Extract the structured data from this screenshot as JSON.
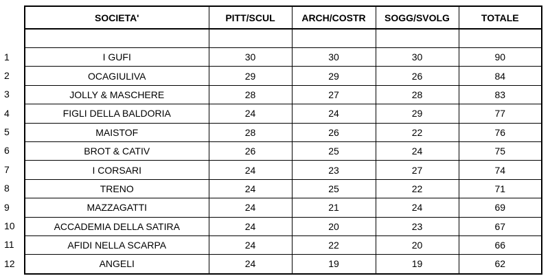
{
  "headers": {
    "societa": "SOCIETA'",
    "pitt_scul": "PITT/SCUL",
    "arch_costr": "ARCH/COSTR",
    "sogg_svolg": "SOGG/SVOLG",
    "totale": "TOTALE"
  },
  "rows": [
    {
      "rank": "1",
      "societa": "I GUFI",
      "pitt_scul": "30",
      "arch_costr": "30",
      "sogg_svolg": "30",
      "totale": "90"
    },
    {
      "rank": "2",
      "societa": "OCAGIULIVA",
      "pitt_scul": "29",
      "arch_costr": "29",
      "sogg_svolg": "26",
      "totale": "84"
    },
    {
      "rank": "3",
      "societa": "JOLLY & MASCHERE",
      "pitt_scul": "28",
      "arch_costr": "27",
      "sogg_svolg": "28",
      "totale": "83"
    },
    {
      "rank": "4",
      "societa": "FIGLI DELLA BALDORIA",
      "pitt_scul": "24",
      "arch_costr": "24",
      "sogg_svolg": "29",
      "totale": "77"
    },
    {
      "rank": "5",
      "societa": "MAISTOF",
      "pitt_scul": "28",
      "arch_costr": "26",
      "sogg_svolg": "22",
      "totale": "76"
    },
    {
      "rank": "6",
      "societa": "BROT & CATIV",
      "pitt_scul": "26",
      "arch_costr": "25",
      "sogg_svolg": "24",
      "totale": "75"
    },
    {
      "rank": "7",
      "societa": "I CORSARI",
      "pitt_scul": "24",
      "arch_costr": "23",
      "sogg_svolg": "27",
      "totale": "74"
    },
    {
      "rank": "8",
      "societa": "TRENO",
      "pitt_scul": "24",
      "arch_costr": "25",
      "sogg_svolg": "22",
      "totale": "71"
    },
    {
      "rank": "9",
      "societa": "MAZZAGATTI",
      "pitt_scul": "24",
      "arch_costr": "21",
      "sogg_svolg": "24",
      "totale": "69"
    },
    {
      "rank": "10",
      "societa": "ACCADEMIA DELLA SATIRA",
      "pitt_scul": "24",
      "arch_costr": "20",
      "sogg_svolg": "23",
      "totale": "67"
    },
    {
      "rank": "11",
      "societa": "AFIDI NELLA SCARPA",
      "pitt_scul": "24",
      "arch_costr": "22",
      "sogg_svolg": "20",
      "totale": "66"
    },
    {
      "rank": "12",
      "societa": "ANGELI",
      "pitt_scul": "24",
      "arch_costr": "19",
      "sogg_svolg": "19",
      "totale": "62"
    }
  ]
}
